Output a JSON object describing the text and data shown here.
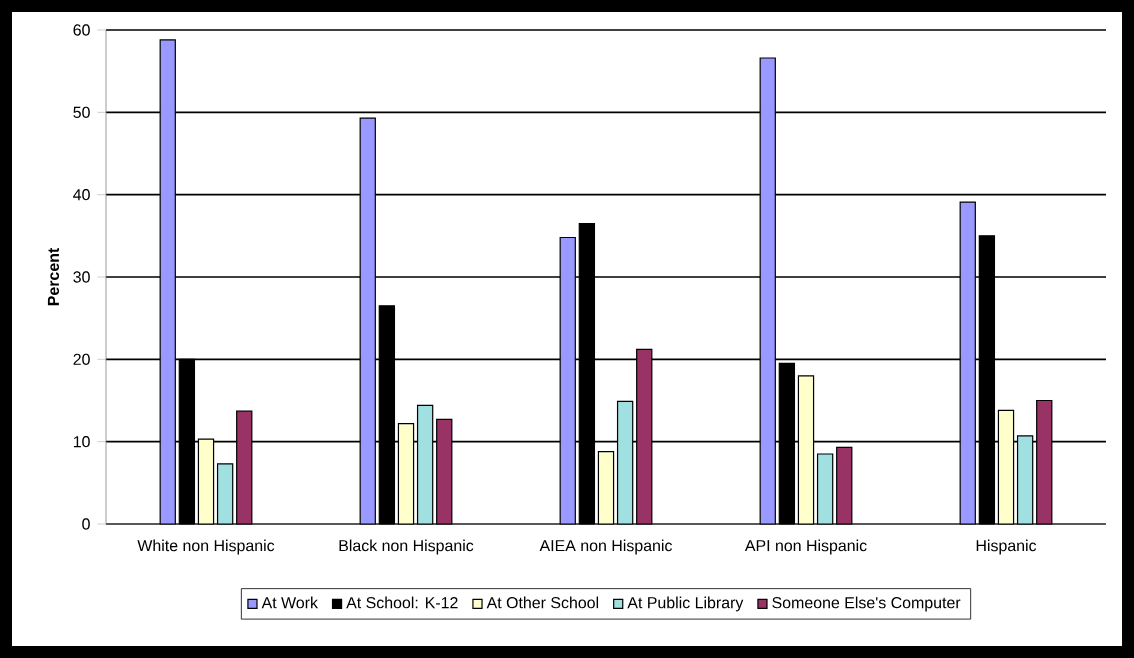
{
  "chart_data": {
    "type": "bar",
    "ylabel": "Percent",
    "categories": [
      "White non Hispanic",
      "Black non Hispanic",
      "AIEA non Hispanic",
      "API non Hispanic",
      "Hispanic"
    ],
    "series": [
      {
        "name": "At Work",
        "color": "#9999ff",
        "values": [
          58.8,
          49.3,
          34.8,
          56.6,
          39.1
        ]
      },
      {
        "name": "At School: K-12",
        "color": "#000000",
        "values": [
          20.0,
          26.5,
          36.5,
          19.5,
          35.0
        ]
      },
      {
        "name": "At Other School",
        "color": "#ffffcc",
        "values": [
          10.3,
          12.2,
          8.8,
          18.0,
          13.8
        ]
      },
      {
        "name": "At Public Library",
        "color": "#a0e0e0",
        "values": [
          7.3,
          14.4,
          14.9,
          8.5,
          10.7
        ]
      },
      {
        "name": "Someone Else's Computer",
        "color": "#993366",
        "values": [
          13.7,
          12.7,
          21.2,
          9.3,
          15.0
        ]
      }
    ],
    "ylim": [
      0,
      60
    ],
    "yticks": [
      0,
      10,
      20,
      30,
      40,
      50,
      60
    ],
    "grid": "y",
    "legend": "bottom"
  }
}
